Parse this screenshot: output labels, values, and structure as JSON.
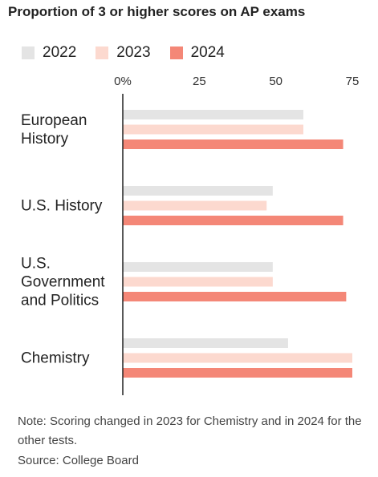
{
  "title": "Proportion of 3 or higher scores on AP exams",
  "note": "Note: Scoring changed in 2023 for Chemistry and in 2024 for the other tests.",
  "source": "Source: College Board",
  "colors": {
    "2022": "#e4e4e4",
    "2023": "#fcd9cf",
    "2024": "#f48777",
    "axis": "#222222"
  },
  "chart_data": {
    "type": "bar",
    "orientation": "horizontal",
    "title": "Proportion of 3 or higher scores on AP exams",
    "categories": [
      "European\nHistory",
      "U.S. History",
      "U.S.\nGovernment\nand Politics",
      "Chemistry"
    ],
    "series": [
      {
        "name": "2022",
        "values": [
          59,
          49,
          49,
          54
        ]
      },
      {
        "name": "2023",
        "values": [
          59,
          47,
          49,
          75
        ]
      },
      {
        "name": "2024",
        "values": [
          72,
          72,
          73,
          75
        ]
      }
    ],
    "xlim": [
      0,
      75
    ],
    "xticks": [
      0,
      25,
      50,
      75
    ],
    "xtick_labels": [
      "0%",
      "25",
      "50",
      "75"
    ],
    "legend": "top-left",
    "grid": false
  }
}
